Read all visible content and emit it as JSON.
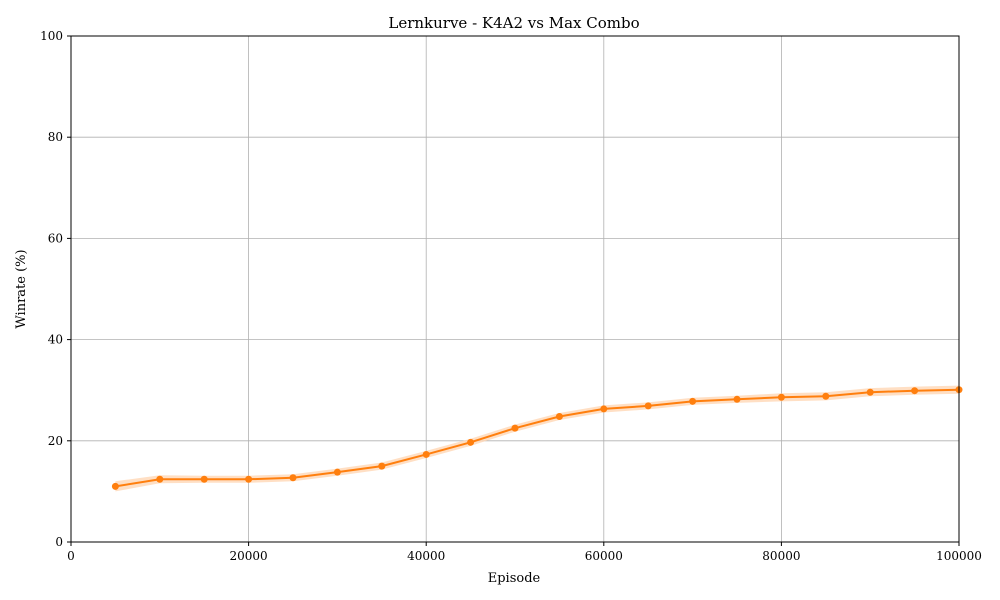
{
  "chart_data": {
    "type": "line",
    "title": "Lernkurve - K4A2 vs Max Combo",
    "xlabel": "Episode",
    "ylabel": "Winrate (%)",
    "xlim": [
      0,
      100000
    ],
    "ylim": [
      0,
      100
    ],
    "xticks": [
      0,
      20000,
      40000,
      60000,
      80000,
      100000
    ],
    "yticks": [
      0,
      20,
      40,
      60,
      80,
      100
    ],
    "grid": true,
    "series": [
      {
        "color": "#ff7f0e",
        "band_color": "#ffd7b5",
        "x": [
          5000,
          10000,
          15000,
          20000,
          25000,
          30000,
          35000,
          40000,
          45000,
          50000,
          55000,
          60000,
          65000,
          70000,
          75000,
          80000,
          85000,
          90000,
          95000,
          100000
        ],
        "y": [
          11.0,
          12.4,
          12.4,
          12.4,
          12.7,
          13.8,
          15.0,
          17.3,
          19.7,
          22.5,
          24.8,
          26.3,
          26.9,
          27.8,
          28.2,
          28.6,
          28.8,
          29.6,
          29.9,
          30.1
        ],
        "y_lower": [
          10.0,
          11.6,
          11.7,
          11.7,
          12.0,
          13.1,
          14.3,
          16.6,
          19.0,
          21.8,
          24.1,
          25.6,
          26.2,
          27.1,
          27.5,
          27.8,
          28.0,
          28.8,
          29.1,
          29.3
        ],
        "y_upper": [
          12.0,
          13.2,
          13.1,
          13.1,
          13.4,
          14.5,
          15.7,
          18.0,
          20.4,
          23.2,
          25.5,
          27.0,
          27.6,
          28.5,
          28.9,
          29.4,
          29.6,
          30.4,
          30.7,
          30.9
        ]
      }
    ]
  }
}
